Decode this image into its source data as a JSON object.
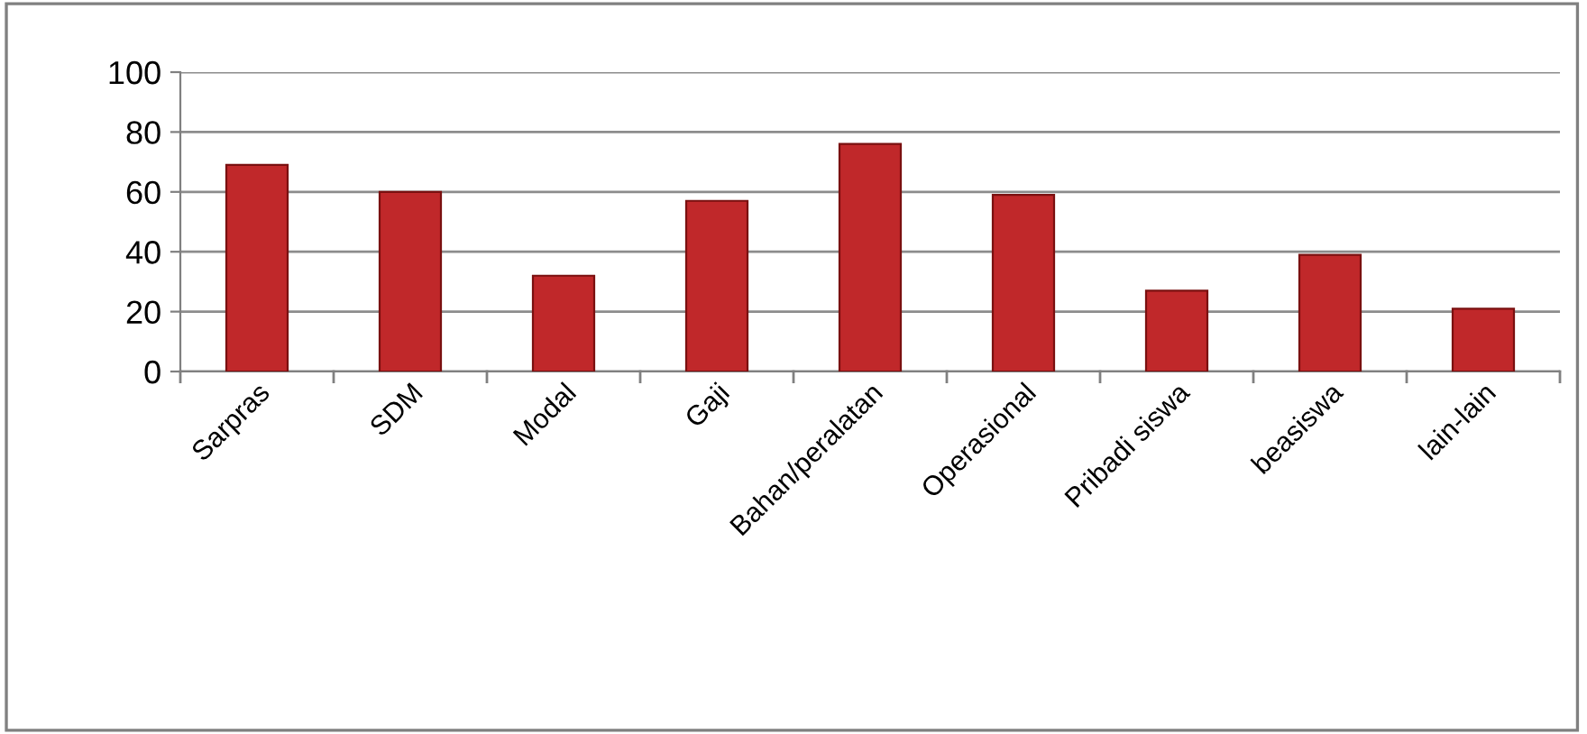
{
  "chart_data": {
    "type": "bar",
    "categories": [
      "Sarpras",
      "SDM",
      "Modal",
      "Gaji",
      "Bahan/peralatan",
      "Operasional",
      "Pribadi siswa",
      "beasiswa",
      "lain-lain"
    ],
    "values": [
      69,
      60,
      32,
      57,
      76,
      59,
      27,
      39,
      21
    ],
    "color": "#c0282a",
    "ylim": [
      0,
      100
    ],
    "yticks": [
      0,
      20,
      40,
      60,
      80,
      100
    ],
    "grid": "y"
  }
}
